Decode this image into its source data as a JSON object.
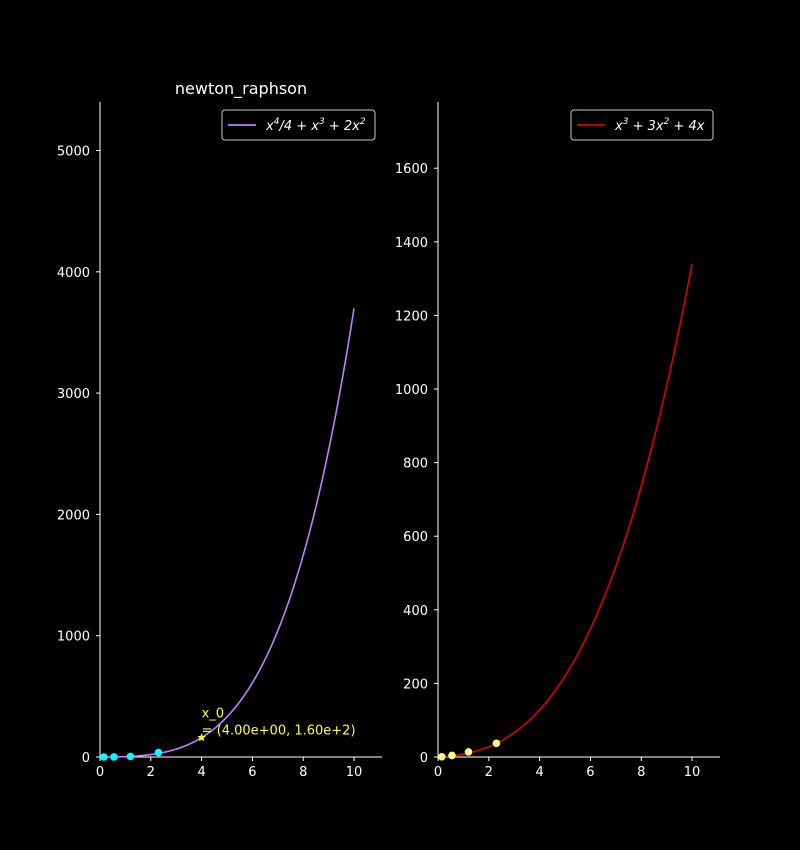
{
  "chart_data": [
    {
      "type": "line",
      "title": "newton_raphson",
      "xlim": [
        0,
        11.1
      ],
      "ylim": [
        0,
        5400
      ],
      "xticks": [
        0,
        2,
        4,
        6,
        8,
        10
      ],
      "yticks": [
        0,
        1000,
        2000,
        3000,
        4000,
        5000
      ],
      "grid": false,
      "legend_position": "top-right",
      "series": [
        {
          "name_parts": [
            "x",
            "4",
            "/4 + x",
            "3",
            " + 2x",
            "2"
          ],
          "color": "#bf7fff",
          "x_range": [
            0,
            10
          ],
          "function": "x^4/4 + x^3 + 2x^2"
        }
      ],
      "iterates": {
        "color": "#00ffff",
        "points": [
          [
            0.15,
            0.05
          ],
          [
            0.55,
            0.9
          ],
          [
            1.2,
            5.1
          ],
          [
            2.3,
            36.2
          ]
        ]
      },
      "start_point": {
        "x": 4.0,
        "y": 160,
        "color": "#ffff33",
        "label_line1": "x_0",
        "label_line2": "= (4.00e+00, 1.60e+2)"
      }
    },
    {
      "type": "line",
      "title": "",
      "xlim": [
        0,
        11.1
      ],
      "ylim": [
        0,
        1780
      ],
      "xticks": [
        0,
        2,
        4,
        6,
        8,
        10
      ],
      "yticks": [
        0,
        200,
        400,
        600,
        800,
        1000,
        1200,
        1400,
        1600
      ],
      "grid": false,
      "legend_position": "top-right",
      "series": [
        {
          "name_parts": [
            "x",
            "3",
            " + 3x",
            "2",
            " + 4x"
          ],
          "color": "#dd0000",
          "x_range": [
            0,
            10
          ],
          "function": "x^3 + 3x^2 + 4x"
        }
      ],
      "iterates": {
        "color": "#ffff88",
        "points": [
          [
            0.15,
            0.67
          ],
          [
            0.55,
            4.2
          ],
          [
            1.2,
            13.9
          ],
          [
            2.3,
            37.2
          ]
        ]
      }
    }
  ]
}
